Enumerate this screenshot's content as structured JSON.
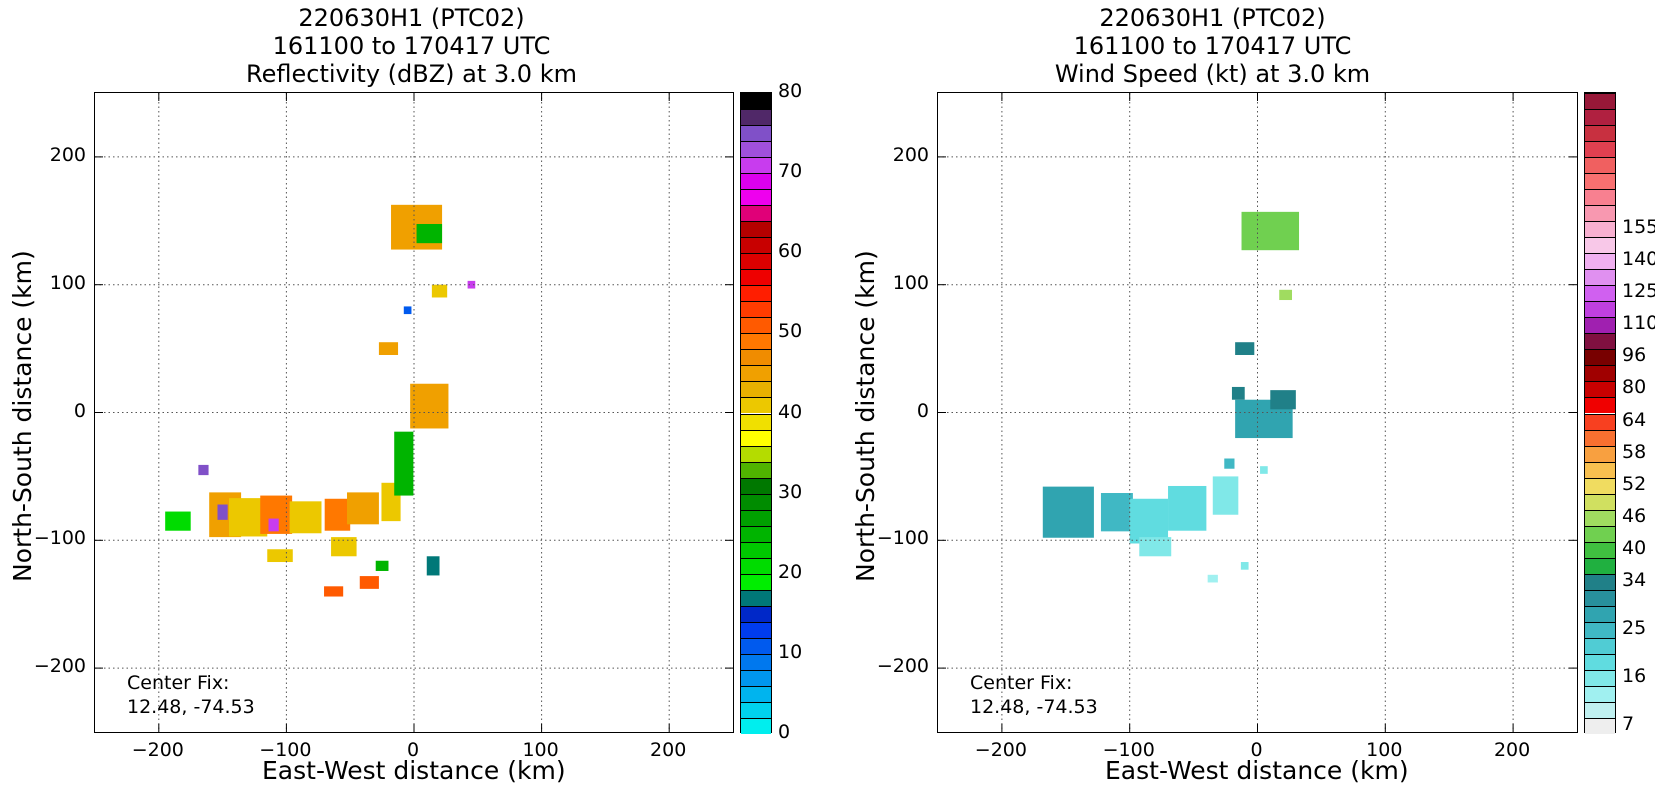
{
  "chart_data": [
    {
      "type": "heatmap",
      "title_lines": [
        "220630H1 (PTC02)",
        "161100 to 170417 UTC",
        "Reflectivity (dBZ) at 3.0 km"
      ],
      "xlabel": "East-West distance (km)",
      "ylabel": "North-South distance (km)",
      "xlim": [
        -250,
        250
      ],
      "ylim": [
        -250,
        250
      ],
      "xticks": [
        -200,
        -100,
        0,
        100,
        200
      ],
      "yticks": [
        -200,
        -100,
        0,
        100,
        200
      ],
      "grid": true,
      "center_fix_label": "Center Fix:",
      "center_fix_value": "12.48, -74.53",
      "colorbar": {
        "min": 0,
        "max": 80,
        "step": 2.5,
        "ticks": [
          0,
          10,
          20,
          30,
          40,
          50,
          60,
          70,
          80
        ],
        "colors": [
          "#00eeee",
          "#00d2ee",
          "#00b4ee",
          "#0096ee",
          "#0078ee",
          "#005aee",
          "#003cee",
          "#0028c8",
          "#007878",
          "#00ee00",
          "#00dc00",
          "#00c800",
          "#00b400",
          "#00a000",
          "#008c00",
          "#007800",
          "#50b400",
          "#b4dc00",
          "#ffff00",
          "#f0e000",
          "#ecc800",
          "#e8b000",
          "#f0a000",
          "#f08c00",
          "#ff7800",
          "#ff5a00",
          "#ff3c00",
          "#ff1e00",
          "#ee0000",
          "#dc0000",
          "#c80000",
          "#b40000",
          "#e00078",
          "#ee00ee",
          "#dc00ee",
          "#c83cee",
          "#a050dc",
          "#8050c8",
          "#502868",
          "#000000"
        ]
      },
      "cells": [
        {
          "x": -148,
          "y": -80,
          "w": 25,
          "h": 35,
          "v": 22
        },
        {
          "x": -130,
          "y": -82,
          "w": 30,
          "h": 30,
          "v": 20
        },
        {
          "x": -108,
          "y": -80,
          "w": 25,
          "h": 30,
          "v": 24
        },
        {
          "x": -85,
          "y": -82,
          "w": 25,
          "h": 25,
          "v": 20
        },
        {
          "x": -60,
          "y": -80,
          "w": 20,
          "h": 25,
          "v": 24
        },
        {
          "x": -40,
          "y": -75,
          "w": 25,
          "h": 25,
          "v": 22
        },
        {
          "x": -18,
          "y": -70,
          "w": 15,
          "h": 30,
          "v": 20
        },
        {
          "x": -8,
          "y": -40,
          "w": 15,
          "h": 50,
          "v": 12
        },
        {
          "x": 12,
          "y": 5,
          "w": 30,
          "h": 35,
          "v": 22
        },
        {
          "x": 2,
          "y": 145,
          "w": 40,
          "h": 35,
          "v": 22
        },
        {
          "x": 12,
          "y": 140,
          "w": 20,
          "h": 15,
          "v": 12
        },
        {
          "x": 20,
          "y": 95,
          "w": 12,
          "h": 10,
          "v": 20
        },
        {
          "x": -20,
          "y": 50,
          "w": 15,
          "h": 10,
          "v": 22
        },
        {
          "x": -150,
          "y": -78,
          "w": 8,
          "h": 12,
          "v": 37
        },
        {
          "x": -110,
          "y": -88,
          "w": 8,
          "h": 10,
          "v": 35
        },
        {
          "x": -185,
          "y": -85,
          "w": 20,
          "h": 15,
          "v": 10
        },
        {
          "x": -165,
          "y": -45,
          "w": 8,
          "h": 8,
          "v": 37
        },
        {
          "x": -55,
          "y": -105,
          "w": 20,
          "h": 15,
          "v": 20
        },
        {
          "x": -35,
          "y": -133,
          "w": 15,
          "h": 10,
          "v": 25
        },
        {
          "x": -63,
          "y": -140,
          "w": 15,
          "h": 8,
          "v": 25
        },
        {
          "x": -25,
          "y": -120,
          "w": 10,
          "h": 8,
          "v": 12
        },
        {
          "x": 15,
          "y": -120,
          "w": 10,
          "h": 15,
          "v": 8
        },
        {
          "x": -5,
          "y": 80,
          "w": 6,
          "h": 6,
          "v": 5
        },
        {
          "x": 45,
          "y": 100,
          "w": 6,
          "h": 6,
          "v": 35
        },
        {
          "x": -105,
          "y": -112,
          "w": 20,
          "h": 10,
          "v": 20
        }
      ]
    },
    {
      "type": "heatmap",
      "title_lines": [
        "220630H1 (PTC02)",
        "161100 to 170417 UTC",
        "Wind Speed (kt) at 3.0 km"
      ],
      "xlabel": "East-West distance (km)",
      "ylabel": "North-South distance (km)",
      "xlim": [
        -250,
        250
      ],
      "ylim": [
        -250,
        250
      ],
      "xticks": [
        -200,
        -100,
        0,
        100,
        200
      ],
      "yticks": [
        -200,
        -100,
        0,
        100,
        200
      ],
      "grid": true,
      "center_fix_label": "Center Fix:",
      "center_fix_value": "12.48, -74.53",
      "colorbar": {
        "ticks": [
          "7",
          "16",
          "25",
          "34",
          "40",
          "46",
          "52",
          "58",
          "64",
          "80",
          "96",
          "110",
          "125",
          "140",
          "155"
        ],
        "tick_steps": [
          0,
          3,
          6,
          9,
          11,
          13,
          15,
          17,
          19,
          21,
          23,
          25,
          27,
          29,
          31
        ],
        "colors": [
          "#eeeeee",
          "#c0f0f0",
          "#a0f0f0",
          "#80e8e8",
          "#60dce0",
          "#50ccd4",
          "#40b8c4",
          "#30a4b0",
          "#28909c",
          "#208088",
          "#20b040",
          "#40c040",
          "#70d050",
          "#a0dc60",
          "#d0e060",
          "#f0dc60",
          "#f8c050",
          "#f8a040",
          "#f87030",
          "#f84020",
          "#f00000",
          "#c80000",
          "#a00000",
          "#780000",
          "#801040",
          "#a020b0",
          "#c040e0",
          "#d060f0",
          "#e090f0",
          "#f0b0f0",
          "#f8c8e8",
          "#f8b0d0",
          "#f898b0",
          "#f88090",
          "#f87070",
          "#f06060",
          "#e04050",
          "#c83040",
          "#b02040",
          "#981838"
        ]
      },
      "cells": [
        {
          "x": 10,
          "y": 142,
          "w": 45,
          "h": 30,
          "v": 12
        },
        {
          "x": 22,
          "y": 92,
          "w": 10,
          "h": 8,
          "v": 13
        },
        {
          "x": -10,
          "y": 50,
          "w": 15,
          "h": 10,
          "v": 9
        },
        {
          "x": 5,
          "y": -5,
          "w": 45,
          "h": 30,
          "v": 7
        },
        {
          "x": 20,
          "y": 10,
          "w": 20,
          "h": 15,
          "v": 9
        },
        {
          "x": -15,
          "y": 15,
          "w": 10,
          "h": 10,
          "v": 9
        },
        {
          "x": -148,
          "y": -78,
          "w": 40,
          "h": 40,
          "v": 7
        },
        {
          "x": -110,
          "y": -78,
          "w": 25,
          "h": 30,
          "v": 6
        },
        {
          "x": -85,
          "y": -85,
          "w": 30,
          "h": 35,
          "v": 4
        },
        {
          "x": -55,
          "y": -75,
          "w": 30,
          "h": 35,
          "v": 4
        },
        {
          "x": -25,
          "y": -65,
          "w": 20,
          "h": 30,
          "v": 3
        },
        {
          "x": -80,
          "y": -105,
          "w": 25,
          "h": 15,
          "v": 3
        },
        {
          "x": -22,
          "y": -40,
          "w": 8,
          "h": 8,
          "v": 6
        },
        {
          "x": 5,
          "y": -45,
          "w": 6,
          "h": 6,
          "v": 3
        },
        {
          "x": -35,
          "y": -130,
          "w": 8,
          "h": 6,
          "v": 2
        },
        {
          "x": -10,
          "y": -120,
          "w": 6,
          "h": 6,
          "v": 3
        }
      ]
    }
  ]
}
